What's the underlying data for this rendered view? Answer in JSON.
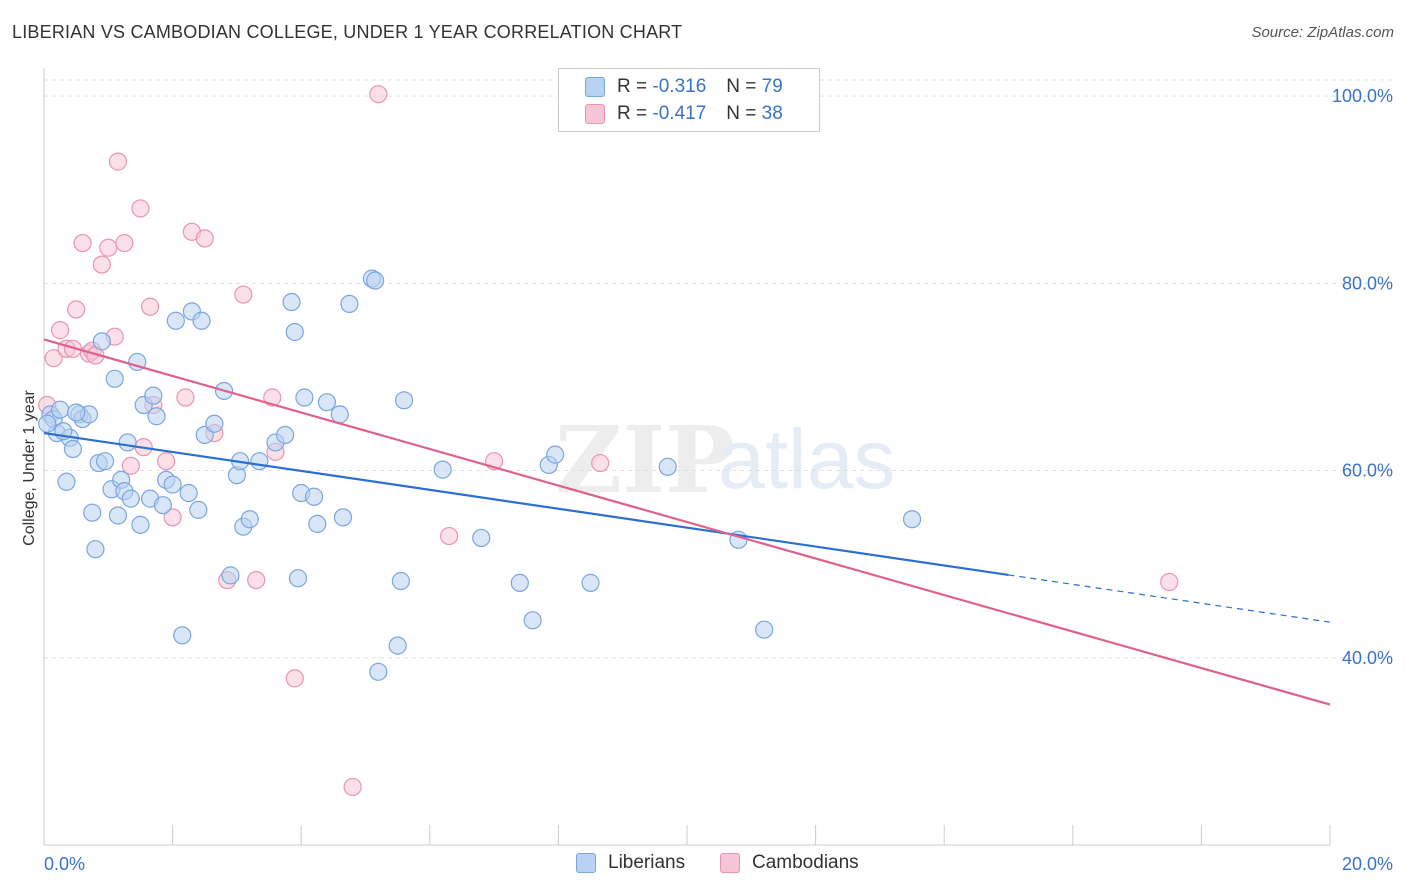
{
  "header": {
    "title": "LIBERIAN VS CAMBODIAN COLLEGE, UNDER 1 YEAR CORRELATION CHART",
    "source": "Source: ZipAtlas.com"
  },
  "watermark": {
    "zip": "ZIP",
    "atlas": "atlas"
  },
  "legend": {
    "rows": [
      {
        "r_label": "R = ",
        "r_value": "-0.316",
        "n_label": "N = ",
        "n_value": "79"
      },
      {
        "r_label": "R = ",
        "r_value": "-0.417",
        "n_label": "N = ",
        "n_value": "38"
      }
    ]
  },
  "bottom_legend": {
    "liberians": "Liberians",
    "cambodians": "Cambodians"
  },
  "colors": {
    "liberians_fill": "#b9d2f3",
    "liberians_stroke": "#7aa6e0",
    "liberians_line": "#2a6fd1",
    "cambodians_fill": "#f7c6d6",
    "cambodians_stroke": "#eb94b1",
    "cambodians_line": "#e0608e",
    "grid": "#e2e2e2",
    "axis_label": "#3a73c6"
  },
  "chart_data": {
    "type": "scatter",
    "title": "LIBERIAN VS CAMBODIAN COLLEGE, UNDER 1 YEAR CORRELATION CHART",
    "xlabel": "",
    "ylabel": "College, Under 1 year",
    "xlim": [
      0,
      20
    ],
    "ylim": [
      20,
      103
    ],
    "x_tick_labels": [
      "0.0%",
      "20.0%"
    ],
    "y_ticks": [
      40,
      60,
      80,
      100
    ],
    "y_tick_labels": [
      "40.0%",
      "60.0%",
      "80.0%",
      "100.0%"
    ],
    "grid": true,
    "series": [
      {
        "name": "Liberians",
        "r": -0.316,
        "n": 79,
        "trend": {
          "x_start": 0.0,
          "y_start": 64.0,
          "x_solid_end": 15.0,
          "x_end": 20.0,
          "y_end": 43.8
        },
        "points": [
          [
            0.1,
            66.0
          ],
          [
            0.15,
            65.5
          ],
          [
            0.2,
            64.0
          ],
          [
            0.25,
            66.5
          ],
          [
            0.35,
            58.8
          ],
          [
            0.4,
            63.5
          ],
          [
            0.45,
            62.3
          ],
          [
            0.55,
            66.0
          ],
          [
            0.6,
            65.5
          ],
          [
            0.7,
            66.0
          ],
          [
            0.75,
            55.5
          ],
          [
            0.8,
            51.6
          ],
          [
            0.85,
            60.8
          ],
          [
            0.9,
            73.8
          ],
          [
            0.95,
            61.0
          ],
          [
            1.05,
            58.0
          ],
          [
            1.1,
            69.8
          ],
          [
            1.15,
            55.2
          ],
          [
            1.2,
            59.0
          ],
          [
            1.25,
            57.8
          ],
          [
            1.3,
            63.0
          ],
          [
            1.35,
            57.0
          ],
          [
            1.45,
            71.6
          ],
          [
            1.5,
            54.2
          ],
          [
            1.55,
            67.0
          ],
          [
            1.65,
            57.0
          ],
          [
            1.7,
            68.0
          ],
          [
            1.75,
            65.8
          ],
          [
            1.85,
            56.3
          ],
          [
            1.9,
            59.0
          ],
          [
            2.0,
            58.5
          ],
          [
            2.05,
            76.0
          ],
          [
            2.15,
            42.4
          ],
          [
            2.25,
            57.6
          ],
          [
            2.3,
            77.0
          ],
          [
            2.4,
            55.8
          ],
          [
            2.45,
            76.0
          ],
          [
            2.5,
            63.8
          ],
          [
            2.65,
            65.0
          ],
          [
            2.8,
            68.5
          ],
          [
            2.9,
            48.8
          ],
          [
            3.0,
            59.5
          ],
          [
            3.05,
            61.0
          ],
          [
            3.1,
            54.0
          ],
          [
            3.2,
            54.8
          ],
          [
            3.35,
            61.0
          ],
          [
            3.6,
            63.0
          ],
          [
            3.75,
            63.8
          ],
          [
            3.85,
            78.0
          ],
          [
            3.9,
            74.8
          ],
          [
            3.95,
            48.5
          ],
          [
            4.0,
            57.6
          ],
          [
            4.05,
            67.8
          ],
          [
            4.2,
            57.2
          ],
          [
            4.25,
            54.3
          ],
          [
            4.4,
            67.3
          ],
          [
            4.6,
            66.0
          ],
          [
            4.65,
            55.0
          ],
          [
            4.75,
            77.8
          ],
          [
            5.1,
            80.5
          ],
          [
            5.15,
            80.3
          ],
          [
            5.2,
            38.5
          ],
          [
            5.5,
            41.3
          ],
          [
            5.55,
            48.2
          ],
          [
            5.6,
            67.5
          ],
          [
            6.2,
            60.1
          ],
          [
            6.8,
            52.8
          ],
          [
            7.4,
            48.0
          ],
          [
            7.6,
            44.0
          ],
          [
            7.85,
            60.6
          ],
          [
            7.95,
            61.7
          ],
          [
            8.5,
            48.0
          ],
          [
            9.7,
            60.4
          ],
          [
            10.8,
            52.6
          ],
          [
            11.2,
            43.0
          ],
          [
            13.5,
            54.8
          ],
          [
            0.05,
            65.0
          ],
          [
            0.3,
            64.2
          ],
          [
            0.5,
            66.2
          ]
        ]
      },
      {
        "name": "Cambodians",
        "r": -0.417,
        "n": 38,
        "trend": {
          "x_start": 0.0,
          "y_start": 74.0,
          "x_end": 20.0,
          "y_end": 35.0
        },
        "points": [
          [
            0.05,
            67.0
          ],
          [
            0.15,
            72.0
          ],
          [
            0.25,
            75.0
          ],
          [
            0.35,
            73.0
          ],
          [
            0.45,
            73.0
          ],
          [
            0.5,
            77.2
          ],
          [
            0.6,
            84.3
          ],
          [
            0.7,
            72.5
          ],
          [
            0.75,
            72.8
          ],
          [
            0.8,
            72.3
          ],
          [
            0.9,
            82.0
          ],
          [
            1.0,
            83.8
          ],
          [
            1.1,
            74.3
          ],
          [
            1.15,
            93.0
          ],
          [
            1.25,
            84.3
          ],
          [
            1.35,
            60.5
          ],
          [
            1.5,
            88.0
          ],
          [
            1.55,
            62.5
          ],
          [
            1.65,
            77.5
          ],
          [
            1.7,
            67.0
          ],
          [
            1.9,
            61.0
          ],
          [
            2.0,
            55.0
          ],
          [
            2.2,
            67.8
          ],
          [
            2.3,
            85.5
          ],
          [
            2.5,
            84.8
          ],
          [
            2.65,
            64.0
          ],
          [
            2.85,
            48.3
          ],
          [
            3.1,
            78.8
          ],
          [
            3.3,
            48.3
          ],
          [
            3.55,
            67.8
          ],
          [
            3.6,
            62.0
          ],
          [
            3.9,
            37.8
          ],
          [
            4.8,
            26.2
          ],
          [
            5.2,
            100.2
          ],
          [
            6.3,
            53.0
          ],
          [
            7.0,
            61.0
          ],
          [
            8.65,
            60.8
          ],
          [
            17.5,
            48.1
          ]
        ]
      }
    ]
  }
}
